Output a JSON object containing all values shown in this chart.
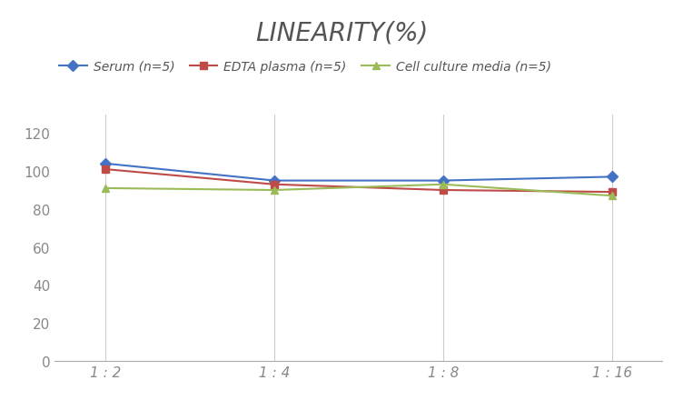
{
  "title": "LINEARITY(%)",
  "x_labels": [
    "1 : 2",
    "1 : 4",
    "1 : 8",
    "1 : 16"
  ],
  "series": [
    {
      "label": "Serum (n=5)",
      "values": [
        104,
        95,
        95,
        97
      ],
      "color": "#4472C4",
      "marker": "D",
      "marker_facecolor": "#4472C4"
    },
    {
      "label": "EDTA plasma (n=5)",
      "values": [
        101,
        93,
        90,
        89
      ],
      "color": "#BE4B48",
      "marker": "s",
      "marker_facecolor": "#BE4B48"
    },
    {
      "label": "Cell culture media (n=5)",
      "values": [
        91,
        90,
        93,
        87
      ],
      "color": "#9BBB59",
      "marker": "^",
      "marker_facecolor": "#9BBB59"
    }
  ],
  "ylim": [
    0,
    130
  ],
  "yticks": [
    0,
    20,
    40,
    60,
    80,
    100,
    120
  ],
  "background_color": "#ffffff",
  "grid_color": "#cccccc",
  "title_fontsize": 20,
  "legend_fontsize": 10,
  "tick_fontsize": 11
}
